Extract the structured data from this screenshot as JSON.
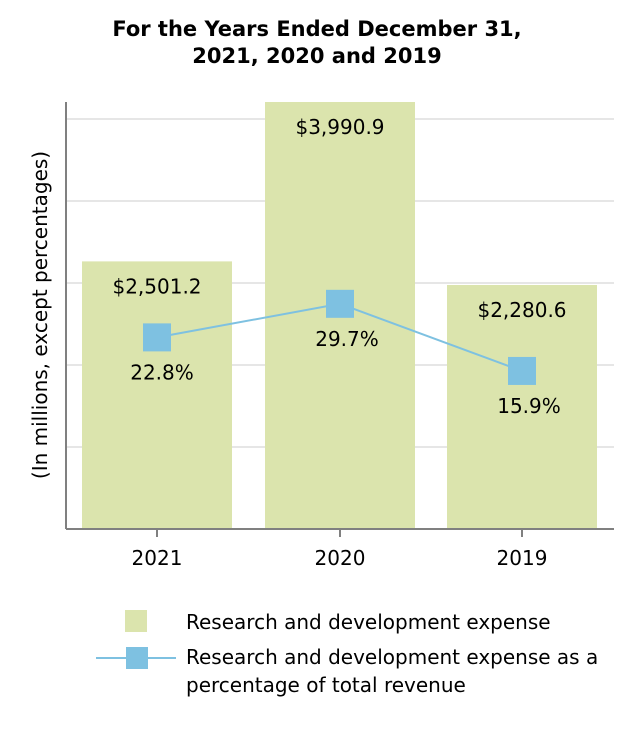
{
  "chart_data": {
    "type": "bar",
    "title_lines": [
      "For the Years Ended December 31,",
      "2021, 2020 and 2019"
    ],
    "ylabel": "(In millions, except percentages)",
    "categories": [
      "2021",
      "2020",
      "2019"
    ],
    "series": [
      {
        "name": "Research and development expense",
        "type": "bar",
        "values": [
          2501.2,
          3990.9,
          2280.6
        ],
        "labels": [
          "$2,501.2",
          "$3,990.9",
          "$2,280.6"
        ],
        "color": "#dbe4ad"
      },
      {
        "name": "Research and development expense as a percentage of total revenue",
        "legend_lines": [
          "Research and development expense as a",
          "percentage of total revenue"
        ],
        "type": "line",
        "values": [
          22.8,
          29.7,
          15.9
        ],
        "labels": [
          "22.8%",
          "29.7%",
          "15.9%"
        ],
        "color": "#7ec1e1"
      }
    ],
    "ylim": [
      0,
      3990.9
    ],
    "pct_ylim": [
      -16.6,
      71.2
    ],
    "grid": true
  }
}
